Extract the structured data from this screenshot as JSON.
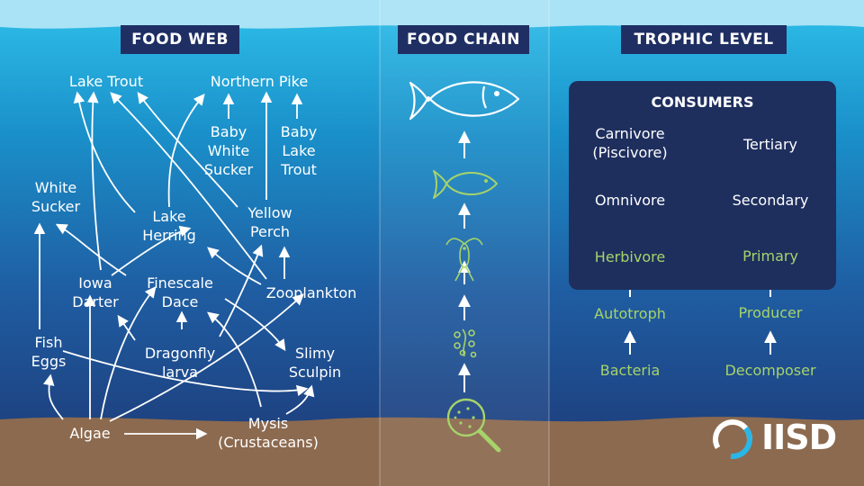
{
  "titles": {
    "food_web": "FOOD WEB",
    "food_chain": "FOOD CHAIN",
    "trophic_level": "TROPHIC LEVEL"
  },
  "food_web": {
    "lake_trout": "Lake Trout",
    "northern_pike": "Northern Pike",
    "baby_white_sucker": "Baby\nWhite\nSucker",
    "baby_lake_trout": "Baby\nLake\nTrout",
    "white_sucker": "White\nSucker",
    "lake_herring": "Lake\nHerring",
    "yellow_perch": "Yellow\nPerch",
    "iowa_darter": "Iowa\nDarter",
    "finescale_dace": "Finescale\nDace",
    "zooplankton": "Zooplankton",
    "fish_eggs": "Fish\nEggs",
    "dragonfly_larva": "Dragonfly\nlarva",
    "slimy_sculpin": "Slimy\nSculpin",
    "algae": "Algae",
    "mysis": "Mysis\n(Crustaceans)"
  },
  "food_chain": {
    "icons": [
      "large-fish-icon",
      "small-fish-icon",
      "zooplankton-icon",
      "algae-icon",
      "bacteria-magnifier-icon"
    ]
  },
  "trophic": {
    "consumers_title": "CONSUMERS",
    "carnivore": "Carnivore\n(Piscivore)",
    "omnivore": "Omnivore",
    "herbivore": "Herbivore",
    "autotroph": "Autotroph",
    "bacteria": "Bacteria",
    "tertiary": "Tertiary",
    "secondary": "Secondary",
    "primary": "Primary",
    "producer": "Producer",
    "decomposer": "Decomposer"
  },
  "logo": {
    "text": "IISD"
  },
  "colors": {
    "title_box": "#1f2f63",
    "consumer_box": "#1e2f5e",
    "green_text": "#a6d36a",
    "sediment": "#8c6a4f",
    "logo_ring": "#29b6e8"
  }
}
